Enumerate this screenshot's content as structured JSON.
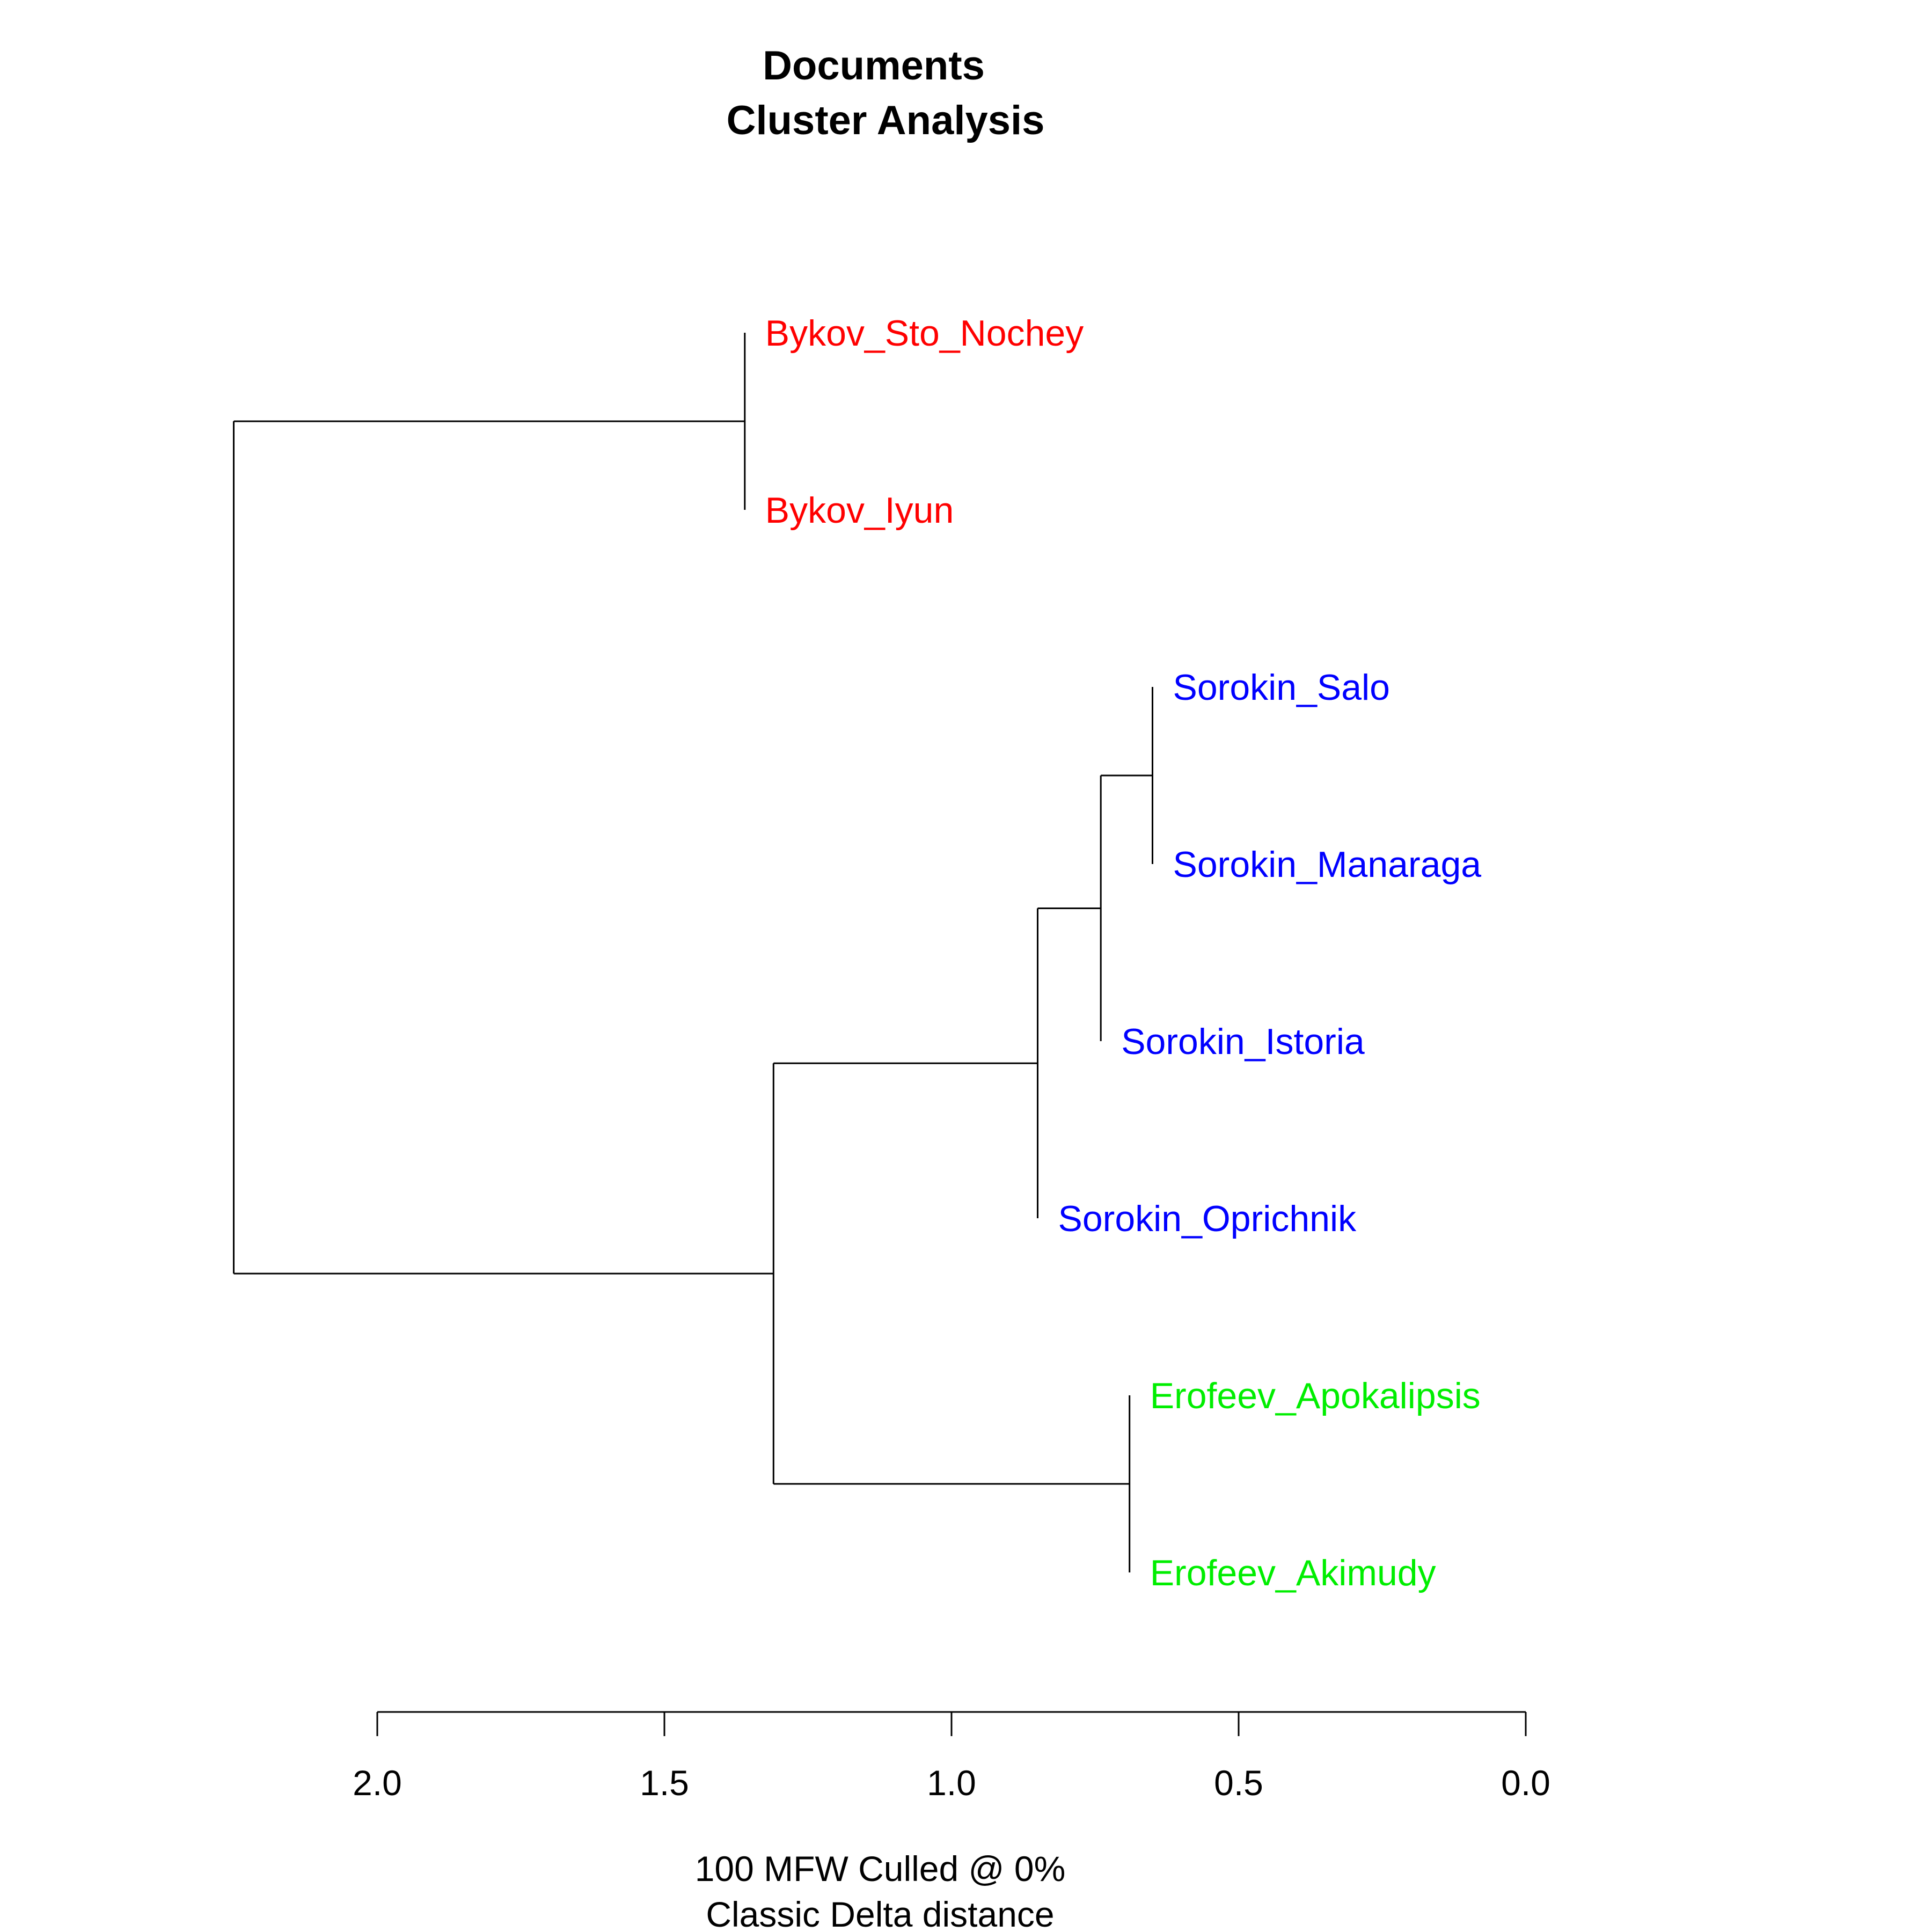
{
  "chart_data": {
    "type": "dendrogram",
    "title": [
      "Documents",
      "Cluster Analysis"
    ],
    "xlabel": [
      "100 MFW  Culled @ 0%",
      "Classic Delta distance"
    ],
    "x_ticks": [
      2.0,
      1.5,
      1.0,
      0.5,
      0.0
    ],
    "x_tick_labels": [
      "2.0",
      "1.5",
      "1.0",
      "0.5",
      "0.0"
    ],
    "xlim": [
      2.0,
      0.0
    ],
    "leaves": [
      {
        "label": "Bykov_Sto_Nochey",
        "group": "Bykov",
        "color": "#ff0000",
        "height": 0.0
      },
      {
        "label": "Bykov_Iyun",
        "group": "Bykov",
        "color": "#ff0000",
        "height": 0.0
      },
      {
        "label": "Sorokin_Salo",
        "group": "Sorokin",
        "color": "#0000ff",
        "height": 0.0
      },
      {
        "label": "Sorokin_Manaraga",
        "group": "Sorokin",
        "color": "#0000ff",
        "height": 0.0
      },
      {
        "label": "Sorokin_Istoria",
        "group": "Sorokin",
        "color": "#0000ff",
        "height": 0.0
      },
      {
        "label": "Sorokin_Oprichnik",
        "group": "Sorokin",
        "color": "#0000ff",
        "height": 0.0
      },
      {
        "label": "Erofeev_Apokalipsis",
        "group": "Erofeev",
        "color": "#00ee00",
        "height": 0.0
      },
      {
        "label": "Erofeev_Akimudy",
        "group": "Erofeev",
        "color": "#00ee00",
        "height": 0.0
      }
    ],
    "merges": [
      {
        "id": "m1",
        "children": [
          2,
          3
        ],
        "height": 0.65
      },
      {
        "id": "m2",
        "children": [
          "m1",
          4
        ],
        "height": 0.74
      },
      {
        "id": "m3",
        "children": [
          "m2",
          5
        ],
        "height": 0.85
      },
      {
        "id": "m4",
        "children": [
          6,
          7
        ],
        "height": 0.69
      },
      {
        "id": "m5",
        "children": [
          0,
          1
        ],
        "height": 1.36
      },
      {
        "id": "m6",
        "children": [
          "m3",
          "m4"
        ],
        "height": 1.31
      },
      {
        "id": "m7",
        "children": [
          "m5",
          "m6"
        ],
        "height": 2.25
      }
    ]
  }
}
